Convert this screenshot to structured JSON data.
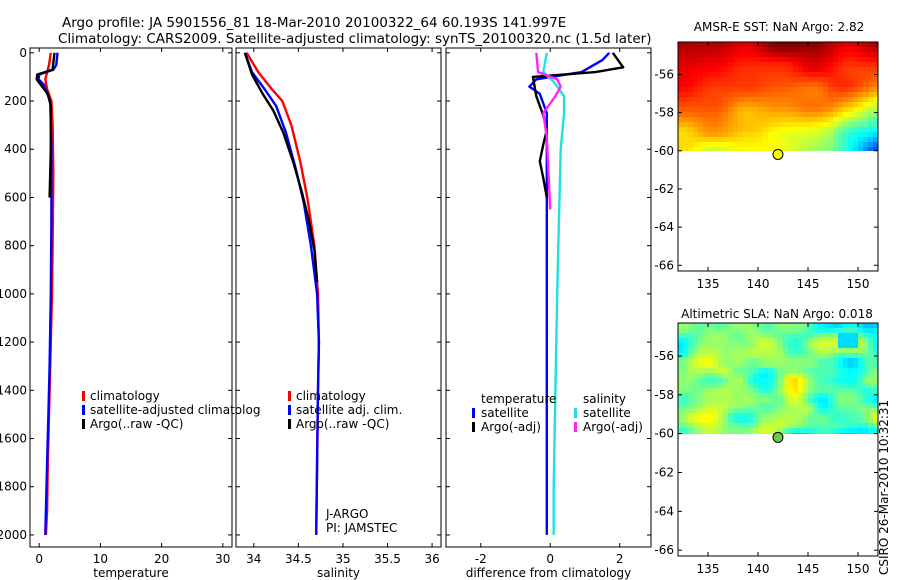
{
  "header": {
    "title_line1": "Argo profile: JA 5901556_81 18-Mar-2010 20100322_64 60.193S 141.997E",
    "title_line2": "Climatology: CARS2009. Satellite-adjusted climatology: synTS_20100320.nc (1.5d later)"
  },
  "side_label": "CSIRO 26-Mar-2010 10:32:31",
  "colors": {
    "climatology": "#ff0000",
    "satellite": "#0000ff",
    "argo": "#000000",
    "sal_satellite": "#22e0e0",
    "sal_argo": "#ff22ff",
    "marker": "#ffff00",
    "marker_green": "#66cc44"
  },
  "chart_data": [
    {
      "type": "line",
      "name": "temperature-panel",
      "xlabel": "temperature",
      "ylabel": "",
      "xlim": [
        -1.5,
        31.5
      ],
      "ylim": [
        2050,
        -20
      ],
      "y_reversed": true,
      "xticks": [
        0,
        10,
        20,
        30
      ],
      "yticks": [
        0,
        200,
        400,
        600,
        800,
        1000,
        1200,
        1400,
        1600,
        1800,
        2000
      ],
      "legend": [
        "climatology",
        "satellite-adjusted climatolog",
        "Argo(..raw -QC)"
      ],
      "series": [
        {
          "name": "climatology",
          "x": [
            1.9,
            1.6,
            1.0,
            1.3,
            2.0,
            2.2,
            2.3,
            2.2,
            2.1,
            1.9,
            1.7,
            1.6,
            1.4,
            1.3,
            1.1
          ],
          "y": [
            0,
            50,
            110,
            150,
            200,
            300,
            500,
            800,
            1000,
            1200,
            1400,
            1500,
            1700,
            1900,
            2000
          ]
        },
        {
          "name": "satellite-adjusted climatolog",
          "x": [
            3.0,
            2.8,
            2.3,
            0.0,
            -0.1,
            0.7,
            1.8,
            2.0,
            2.0,
            1.9,
            1.7,
            1.5,
            1.3,
            1.1,
            1.0
          ],
          "y": [
            0,
            50,
            70,
            90,
            110,
            130,
            200,
            400,
            700,
            1000,
            1300,
            1500,
            1700,
            1900,
            2000
          ]
        },
        {
          "name": "Argo(..raw -QC)",
          "x": [
            2.5,
            2.2,
            -0.3,
            -0.4,
            0.5,
            1.4,
            1.9,
            1.9,
            1.7
          ],
          "y": [
            0,
            70,
            90,
            110,
            140,
            170,
            220,
            400,
            600
          ]
        }
      ]
    },
    {
      "type": "line",
      "name": "salinity-panel",
      "xlabel": "salinity",
      "ylabel": "",
      "xlim": [
        33.8,
        36.1
      ],
      "ylim": [
        2050,
        -20
      ],
      "y_reversed": true,
      "xticks": [
        34,
        34.5,
        35,
        35.5,
        36
      ],
      "xticklabels": [
        "34",
        "34.5",
        "35",
        "35.5",
        "36"
      ],
      "legend": [
        "climatology",
        "satellite adj. clim.",
        "Argo(..raw -QC)"
      ],
      "annotations": [
        "J-ARGO",
        "PI: JAMSTEC"
      ],
      "series": [
        {
          "name": "climatology",
          "x": [
            33.92,
            34.05,
            34.2,
            34.32,
            34.42,
            34.52,
            34.6,
            34.68,
            34.72,
            34.73,
            34.72,
            34.71,
            34.7
          ],
          "y": [
            0,
            80,
            150,
            200,
            300,
            450,
            600,
            800,
            1000,
            1200,
            1400,
            1700,
            2000
          ]
        },
        {
          "name": "satellite adj. clim.",
          "x": [
            33.9,
            33.98,
            34.12,
            34.25,
            34.36,
            34.47,
            34.56,
            34.64,
            34.71,
            34.73,
            34.72,
            34.71,
            34.7
          ],
          "y": [
            0,
            80,
            150,
            220,
            330,
            480,
            620,
            800,
            1000,
            1200,
            1400,
            1700,
            2000
          ]
        },
        {
          "name": "Argo(..raw -QC)",
          "x": [
            33.9,
            33.98,
            34.1,
            34.22,
            34.33,
            34.44,
            34.54,
            34.62,
            34.68,
            34.71
          ],
          "y": [
            0,
            90,
            170,
            240,
            330,
            450,
            580,
            700,
            820,
            950
          ]
        }
      ]
    },
    {
      "type": "line",
      "name": "difference-panel",
      "xlabel": "difference from climatology",
      "ylabel": "",
      "xlim": [
        -3.0,
        2.9
      ],
      "ylim": [
        2050,
        -20
      ],
      "y_reversed": true,
      "xticks": [
        -2,
        0,
        2
      ],
      "legend_groups": [
        {
          "title": "temperature",
          "items": [
            "satellite",
            "Argo(-adj)"
          ]
        },
        {
          "title": "salinity",
          "items": [
            "satellite",
            "Argo(-adj)"
          ]
        }
      ],
      "series": [
        {
          "name": "temperature satellite",
          "x": [
            1.7,
            1.5,
            0.9,
            -0.4,
            -0.6,
            -0.3,
            -0.1,
            -0.1,
            -0.1,
            -0.1,
            -0.1,
            -0.1
          ],
          "y": [
            0,
            30,
            80,
            110,
            140,
            170,
            250,
            500,
            800,
            1200,
            1600,
            2000
          ]
        },
        {
          "name": "temperature Argo(-adj)",
          "x": [
            1.8,
            2.1,
            1.3,
            -0.5,
            -0.4,
            -0.2,
            -0.1,
            -0.2,
            -0.3,
            -0.2,
            -0.1
          ],
          "y": [
            0,
            60,
            80,
            100,
            180,
            260,
            320,
            380,
            450,
            520,
            600
          ]
        },
        {
          "name": "salinity satellite",
          "x": [
            -0.1,
            -0.2,
            0.1,
            0.4,
            0.4,
            0.3,
            0.25,
            0.2,
            0.15,
            0.1,
            0.1
          ],
          "y": [
            0,
            80,
            120,
            180,
            250,
            400,
            700,
            1000,
            1400,
            1800,
            2000
          ]
        },
        {
          "name": "salinity Argo(-adj)",
          "x": [
            -0.4,
            -0.35,
            0.2,
            0.3,
            0.15,
            -0.2,
            -0.1,
            -0.05,
            0.0
          ],
          "y": [
            0,
            80,
            110,
            140,
            180,
            250,
            350,
            500,
            650
          ]
        }
      ]
    },
    {
      "type": "heatmap",
      "name": "sst-map",
      "title": "AMSR-E SST: NaN Argo: 2.82",
      "xlim": [
        132,
        152
      ],
      "ylim": [
        -66.3,
        -54.3
      ],
      "xticks": [
        135,
        140,
        145,
        150
      ],
      "yticks": [
        -56,
        -58,
        -60,
        -62,
        -64,
        -66
      ],
      "marker": {
        "lon": 141.997,
        "lat": -60.193
      },
      "data_extent_lat": [
        -60.0,
        -54.3
      ]
    },
    {
      "type": "heatmap",
      "name": "sla-map",
      "title": "Altimetric SLA: NaN Argo: 0.018",
      "xlim": [
        132,
        152
      ],
      "ylim": [
        -66.3,
        -54.3
      ],
      "xticks": [
        135,
        140,
        145,
        150
      ],
      "yticks": [
        -56,
        -58,
        -60,
        -62,
        -64,
        -66
      ],
      "marker": {
        "lon": 141.997,
        "lat": -60.193
      },
      "data_extent_lat": [
        -60.0,
        -54.3
      ]
    }
  ]
}
